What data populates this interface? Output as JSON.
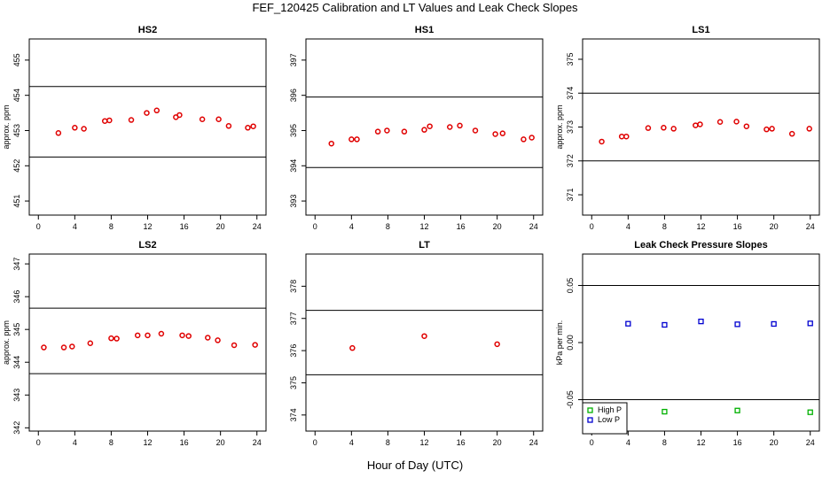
{
  "title": "FEF_120425  Calibration and LT Values and Leak Check Slopes",
  "shared_xlabel": "Hour of Day (UTC)",
  "colors": {
    "cal_points": "#e00000",
    "high_p": "#00b000",
    "low_p": "#0000d0",
    "ref_lines": "#000000"
  },
  "chart_data": [
    {
      "id": "hs2",
      "type": "scatter",
      "title": "HS2",
      "xlabel": "",
      "ylabel": "approx. ppm",
      "xlim": [
        -1,
        25
      ],
      "ylim": [
        450.6,
        455.6
      ],
      "xticks": [
        0,
        4,
        8,
        12,
        16,
        20,
        24
      ],
      "yticks": [
        451,
        452,
        453,
        454,
        455
      ],
      "hlines": [
        452.25,
        454.25
      ],
      "series": [
        {
          "color": "#e00000",
          "x": [
            2.2,
            4.0,
            5.0,
            7.3,
            7.8,
            10.2,
            11.9,
            13.0,
            15.1,
            15.5,
            18.0,
            19.8,
            20.9,
            23.0,
            23.6
          ],
          "y": [
            452.93,
            453.08,
            453.05,
            453.27,
            453.29,
            453.3,
            453.5,
            453.57,
            453.38,
            453.44,
            453.32,
            453.32,
            453.13,
            453.08,
            453.12
          ]
        }
      ]
    },
    {
      "id": "hs1",
      "type": "scatter",
      "title": "HS1",
      "xlabel": "",
      "ylabel": "",
      "xlim": [
        -1,
        25
      ],
      "ylim": [
        392.6,
        397.6
      ],
      "xticks": [
        0,
        4,
        8,
        12,
        16,
        20,
        24
      ],
      "yticks": [
        393,
        394,
        395,
        396,
        397
      ],
      "hlines": [
        393.95,
        395.95
      ],
      "series": [
        {
          "color": "#e00000",
          "x": [
            1.8,
            4.0,
            4.6,
            6.9,
            7.9,
            9.8,
            12.0,
            12.6,
            14.8,
            15.9,
            17.6,
            19.8,
            20.6,
            22.9,
            23.8
          ],
          "y": [
            394.63,
            394.75,
            394.75,
            394.97,
            395.0,
            394.97,
            395.02,
            395.12,
            395.1,
            395.14,
            395.0,
            394.9,
            394.92,
            394.75,
            394.8
          ]
        }
      ]
    },
    {
      "id": "ls1",
      "type": "scatter",
      "title": "LS1",
      "xlabel": "",
      "ylabel": "approx. ppm",
      "xlim": [
        -1,
        25
      ],
      "ylim": [
        370.4,
        375.6
      ],
      "xticks": [
        0,
        4,
        8,
        12,
        16,
        20,
        24
      ],
      "yticks": [
        371,
        372,
        373,
        374,
        375
      ],
      "hlines": [
        372.0,
        374.0
      ],
      "series": [
        {
          "color": "#e00000",
          "x": [
            1.1,
            3.3,
            3.8,
            6.2,
            7.9,
            9.0,
            11.4,
            11.9,
            14.1,
            15.9,
            17.0,
            19.2,
            19.8,
            22.0,
            23.9
          ],
          "y": [
            372.57,
            372.72,
            372.72,
            372.97,
            372.98,
            372.95,
            373.05,
            373.08,
            373.15,
            373.16,
            373.02,
            372.93,
            372.95,
            372.8,
            372.95
          ]
        }
      ]
    },
    {
      "id": "ls2",
      "type": "scatter",
      "title": "LS2",
      "xlabel": "",
      "ylabel": "approx. ppm",
      "xlim": [
        -1,
        25
      ],
      "ylim": [
        341.9,
        347.3
      ],
      "xticks": [
        0,
        4,
        8,
        12,
        16,
        20,
        24
      ],
      "yticks": [
        342,
        343,
        344,
        345,
        346,
        347
      ],
      "hlines": [
        343.65,
        345.65
      ],
      "series": [
        {
          "color": "#e00000",
          "x": [
            0.6,
            2.8,
            3.7,
            5.7,
            8.0,
            8.6,
            10.9,
            12.0,
            13.5,
            15.8,
            16.5,
            18.6,
            19.7,
            21.5,
            23.8
          ],
          "y": [
            344.45,
            344.45,
            344.48,
            344.58,
            344.73,
            344.72,
            344.82,
            344.82,
            344.87,
            344.82,
            344.8,
            344.75,
            344.67,
            344.52,
            344.53
          ]
        }
      ]
    },
    {
      "id": "lt",
      "type": "scatter",
      "title": "LT",
      "xlabel": "",
      "ylabel": "",
      "xlim": [
        -1,
        25
      ],
      "ylim": [
        373.5,
        379.0
      ],
      "xticks": [
        0,
        4,
        8,
        12,
        16,
        20,
        24
      ],
      "yticks": [
        374,
        375,
        376,
        377,
        378
      ],
      "hlines": [
        375.25,
        377.25
      ],
      "series": [
        {
          "color": "#e00000",
          "x": [
            4.1,
            12.0,
            20.0
          ],
          "y": [
            376.08,
            376.45,
            376.2
          ]
        }
      ]
    },
    {
      "id": "leak",
      "type": "scatter",
      "title": "Leak Check Pressure Slopes",
      "xlabel": "",
      "ylabel": "kPa per min.",
      "xlim": [
        -1,
        25
      ],
      "ylim": [
        -0.0775,
        0.0775
      ],
      "xticks": [
        0,
        4,
        8,
        12,
        16,
        20,
        24
      ],
      "yticks": [
        -0.05,
        0.0,
        0.05
      ],
      "ytick_labels": [
        "-0.05",
        "0.00",
        "0.05"
      ],
      "hlines": [
        -0.05,
        0.05
      ],
      "legend": {
        "position": "bottom-left",
        "entries": [
          {
            "label": "High P",
            "color": "#00b000"
          },
          {
            "label": "Low P",
            "color": "#0000d0"
          }
        ]
      },
      "series": [
        {
          "name": "Low P",
          "color": "#0000d0",
          "marker": "square",
          "x": [
            4,
            8,
            12,
            16,
            20,
            24
          ],
          "y": [
            0.0165,
            0.0155,
            0.0185,
            0.016,
            0.0163,
            0.0168
          ]
        },
        {
          "name": "High P",
          "color": "#00b000",
          "marker": "square",
          "x": [
            8,
            16,
            24
          ],
          "y": [
            -0.0605,
            -0.0595,
            -0.061
          ]
        }
      ]
    }
  ]
}
